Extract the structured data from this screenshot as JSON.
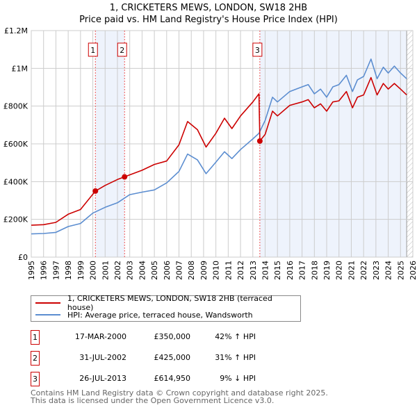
{
  "title": "1, CRICKETERS MEWS, LONDON, SW18 2HB",
  "subtitle": "Price paid vs. HM Land Registry's House Price Index (HPI)",
  "legend": {
    "property": "1, CRICKETERS MEWS, LONDON, SW18 2HB (terraced house)",
    "hpi": "HPI: Average price, terraced house, Wandsworth"
  },
  "sales": [
    {
      "num": "1",
      "date": "17-MAR-2000",
      "price": "£350,000",
      "hpi": "42% ↑ HPI"
    },
    {
      "num": "2",
      "date": "31-JUL-2002",
      "price": "£425,000",
      "hpi": "31% ↑ HPI"
    },
    {
      "num": "3",
      "date": "26-JUL-2013",
      "price": "£614,950",
      "hpi": "9% ↓ HPI"
    }
  ],
  "footer": {
    "line1": "Contains HM Land Registry data © Crown copyright and database right 2025.",
    "line2": "This data is licensed under the Open Government Licence v3.0."
  },
  "colors": {
    "property": "#cc0000",
    "hpi": "#5b8dd0",
    "shade": "#eef3fc"
  },
  "chart_data": {
    "type": "line",
    "xlim": [
      1995,
      2026
    ],
    "ylim": [
      0,
      1200000
    ],
    "y_ticks": [
      0,
      200000,
      400000,
      600000,
      800000,
      1000000,
      1200000
    ],
    "y_tick_labels": [
      "£0",
      "£200K",
      "£400K",
      "£600K",
      "£800K",
      "£1M",
      "£1.2M"
    ],
    "x_ticks": [
      "1995",
      "1996",
      "1997",
      "1998",
      "1999",
      "2000",
      "2001",
      "2002",
      "2003",
      "2004",
      "2005",
      "2006",
      "2007",
      "2008",
      "2009",
      "2010",
      "2011",
      "2012",
      "2013",
      "2014",
      "2015",
      "2016",
      "2017",
      "2018",
      "2019",
      "2020",
      "2021",
      "2022",
      "2023",
      "2024",
      "2025",
      "2026"
    ],
    "grid": true,
    "shaded_ranges": [
      [
        2000.21,
        2002.58
      ],
      [
        2013.57,
        2025.5
      ]
    ],
    "forecast_hatch_from": 2025.5,
    "sale_points": [
      {
        "label": "1",
        "x": 2000.21,
        "y": 350000
      },
      {
        "label": "2",
        "x": 2002.58,
        "y": 425000
      },
      {
        "label": "3",
        "x": 2013.57,
        "y": 614950
      }
    ],
    "series": [
      {
        "name": "1, CRICKETERS MEWS, LONDON, SW18 2HB (terraced house)",
        "color": "#cc0000",
        "x": [
          1995,
          1996,
          1997,
          1998,
          1999,
          2000.21,
          2001,
          2002,
          2002.58,
          2003,
          2004,
          2005,
          2006,
          2007,
          2007.7,
          2008.5,
          2009.2,
          2010,
          2010.7,
          2011.3,
          2012,
          2013,
          2013.5,
          2013.57,
          2014,
          2014.6,
          2015,
          2016,
          2017,
          2017.5,
          2018,
          2018.5,
          2019,
          2019.5,
          2020,
          2020.6,
          2021.1,
          2021.5,
          2022,
          2022.6,
          2023.1,
          2023.6,
          2024,
          2024.5,
          2025,
          2025.5
        ],
        "y": [
          169000,
          172000,
          184000,
          227000,
          252000,
          350000,
          380000,
          411000,
          425000,
          436000,
          460000,
          491000,
          509000,
          595000,
          718000,
          675000,
          583000,
          656000,
          736000,
          681000,
          748000,
          822000,
          865000,
          614950,
          650000,
          773000,
          748000,
          804000,
          822000,
          834000,
          791000,
          812000,
          773000,
          822000,
          828000,
          877000,
          791000,
          847000,
          859000,
          951000,
          859000,
          920000,
          890000,
          920000,
          890000,
          859000
        ]
      },
      {
        "name": "HPI: Average price, terraced house, Wandsworth",
        "color": "#5b8dd0",
        "x": [
          1995,
          1996,
          1997,
          1998,
          1999,
          2000,
          2001,
          2002,
          2003,
          2004,
          2005,
          2006,
          2007,
          2007.7,
          2008.5,
          2009.2,
          2010,
          2010.7,
          2011.3,
          2012,
          2013,
          2013.5,
          2014,
          2014.6,
          2015,
          2016,
          2017,
          2017.5,
          2018,
          2018.5,
          2019,
          2019.5,
          2020,
          2020.6,
          2021.1,
          2021.5,
          2022,
          2022.6,
          2023.1,
          2023.6,
          2024,
          2024.5,
          2025,
          2025.5
        ],
        "y": [
          123000,
          125000,
          131000,
          162000,
          178000,
          233000,
          264000,
          288000,
          331000,
          344000,
          356000,
          393000,
          454000,
          546000,
          515000,
          442000,
          503000,
          558000,
          522000,
          570000,
          626000,
          656000,
          724000,
          847000,
          822000,
          877000,
          902000,
          914000,
          865000,
          890000,
          847000,
          902000,
          914000,
          963000,
          877000,
          939000,
          957000,
          1049000,
          945000,
          1006000,
          975000,
          1012000,
          975000,
          945000
        ]
      }
    ]
  }
}
